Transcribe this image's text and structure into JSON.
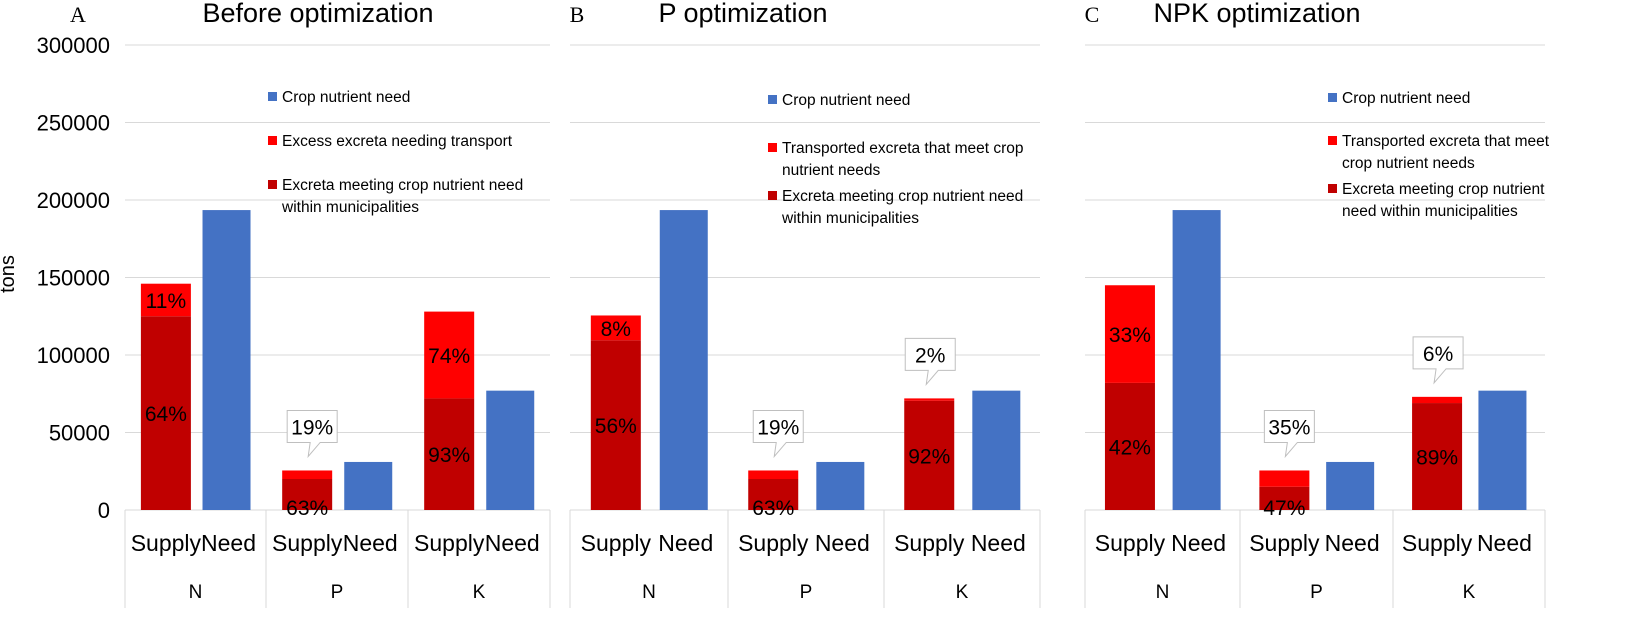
{
  "chart_data": {
    "type": "bar",
    "y_axis": {
      "label": "tons",
      "ylim": [
        0,
        300000
      ],
      "ticks": [
        "0",
        "50000",
        "100000",
        "150000",
        "200000",
        "250000",
        "300000"
      ]
    },
    "colors": {
      "need": "#4472C4",
      "excess": "#FF0000",
      "meeting": "#C00000",
      "grid": "#D9D9D9"
    },
    "panels": [
      {
        "letter": "A",
        "title": "Before optimization",
        "legend": [
          {
            "key": "need",
            "lines": [
              "Crop nutrient need"
            ]
          },
          {
            "key": "excess",
            "lines": [
              "Excess excreta needing transport"
            ]
          },
          {
            "key": "meeting",
            "lines": [
              "Excreta meeting crop nutrient need",
              "within municipalities"
            ]
          }
        ],
        "groups": [
          {
            "name": "N",
            "supply_label": "Supply",
            "need_label": "Need",
            "supply_total": 146000,
            "supply_base": 125000,
            "need": 193500,
            "base_pct": "64%",
            "top_pct": "11%",
            "callout": false
          },
          {
            "name": "P",
            "supply_label": "Supply",
            "need_label": "Need",
            "supply_total": 25500,
            "supply_base": 20000,
            "need": 31000,
            "base_pct": "63%",
            "top_pct": "19%",
            "callout": true
          },
          {
            "name": "K",
            "supply_label": "Supply",
            "need_label": "Need",
            "supply_total": 128000,
            "supply_base": 72000,
            "need": 77000,
            "base_pct": "93%",
            "top_pct": "74%",
            "callout": false
          }
        ]
      },
      {
        "letter": "B",
        "title": "P optimization",
        "legend": [
          {
            "key": "need",
            "lines": [
              "Crop nutrient need"
            ]
          },
          {
            "key": "excess",
            "lines": [
              "Transported excreta that meet crop",
              "nutrient needs"
            ]
          },
          {
            "key": "meeting",
            "lines": [
              "Excreta meeting crop nutrient need",
              "within municipalities"
            ]
          }
        ],
        "groups": [
          {
            "name": "N",
            "supply_label": "Supply",
            "need_label": "Need",
            "supply_total": 125500,
            "supply_base": 109500,
            "need": 193500,
            "base_pct": "56%",
            "top_pct": "8%",
            "callout": false
          },
          {
            "name": "P",
            "supply_label": "Supply",
            "need_label": "Need",
            "supply_total": 25500,
            "supply_base": 20000,
            "need": 31000,
            "base_pct": "63%",
            "top_pct": "19%",
            "callout": true
          },
          {
            "name": "K",
            "supply_label": "Supply",
            "need_label": "Need",
            "supply_total": 72000,
            "supply_base": 70500,
            "need": 77000,
            "base_pct": "92%",
            "top_pct": "2%",
            "callout": true
          }
        ]
      },
      {
        "letter": "C",
        "title": "NPK optimization",
        "legend": [
          {
            "key": "need",
            "lines": [
              "Crop nutrient need"
            ]
          },
          {
            "key": "excess",
            "lines": [
              "Transported excreta that meet",
              "crop nutrient needs"
            ]
          },
          {
            "key": "meeting",
            "lines": [
              "Excreta meeting crop nutrient",
              "need within municipalities"
            ]
          }
        ],
        "groups": [
          {
            "name": "N",
            "supply_label": "Supply",
            "need_label": "Need",
            "supply_total": 145000,
            "supply_base": 82000,
            "need": 193500,
            "base_pct": "42%",
            "top_pct": "33%",
            "callout": false
          },
          {
            "name": "P",
            "supply_label": "Supply",
            "need_label": "Need",
            "supply_total": 25500,
            "supply_base": 15000,
            "need": 31000,
            "base_pct": "47%",
            "top_pct": "35%",
            "callout": true
          },
          {
            "name": "K",
            "supply_label": "Supply",
            "need_label": "Need",
            "supply_total": 73000,
            "supply_base": 69000,
            "need": 77000,
            "base_pct": "89%",
            "top_pct": "6%",
            "callout": true
          }
        ]
      }
    ]
  }
}
